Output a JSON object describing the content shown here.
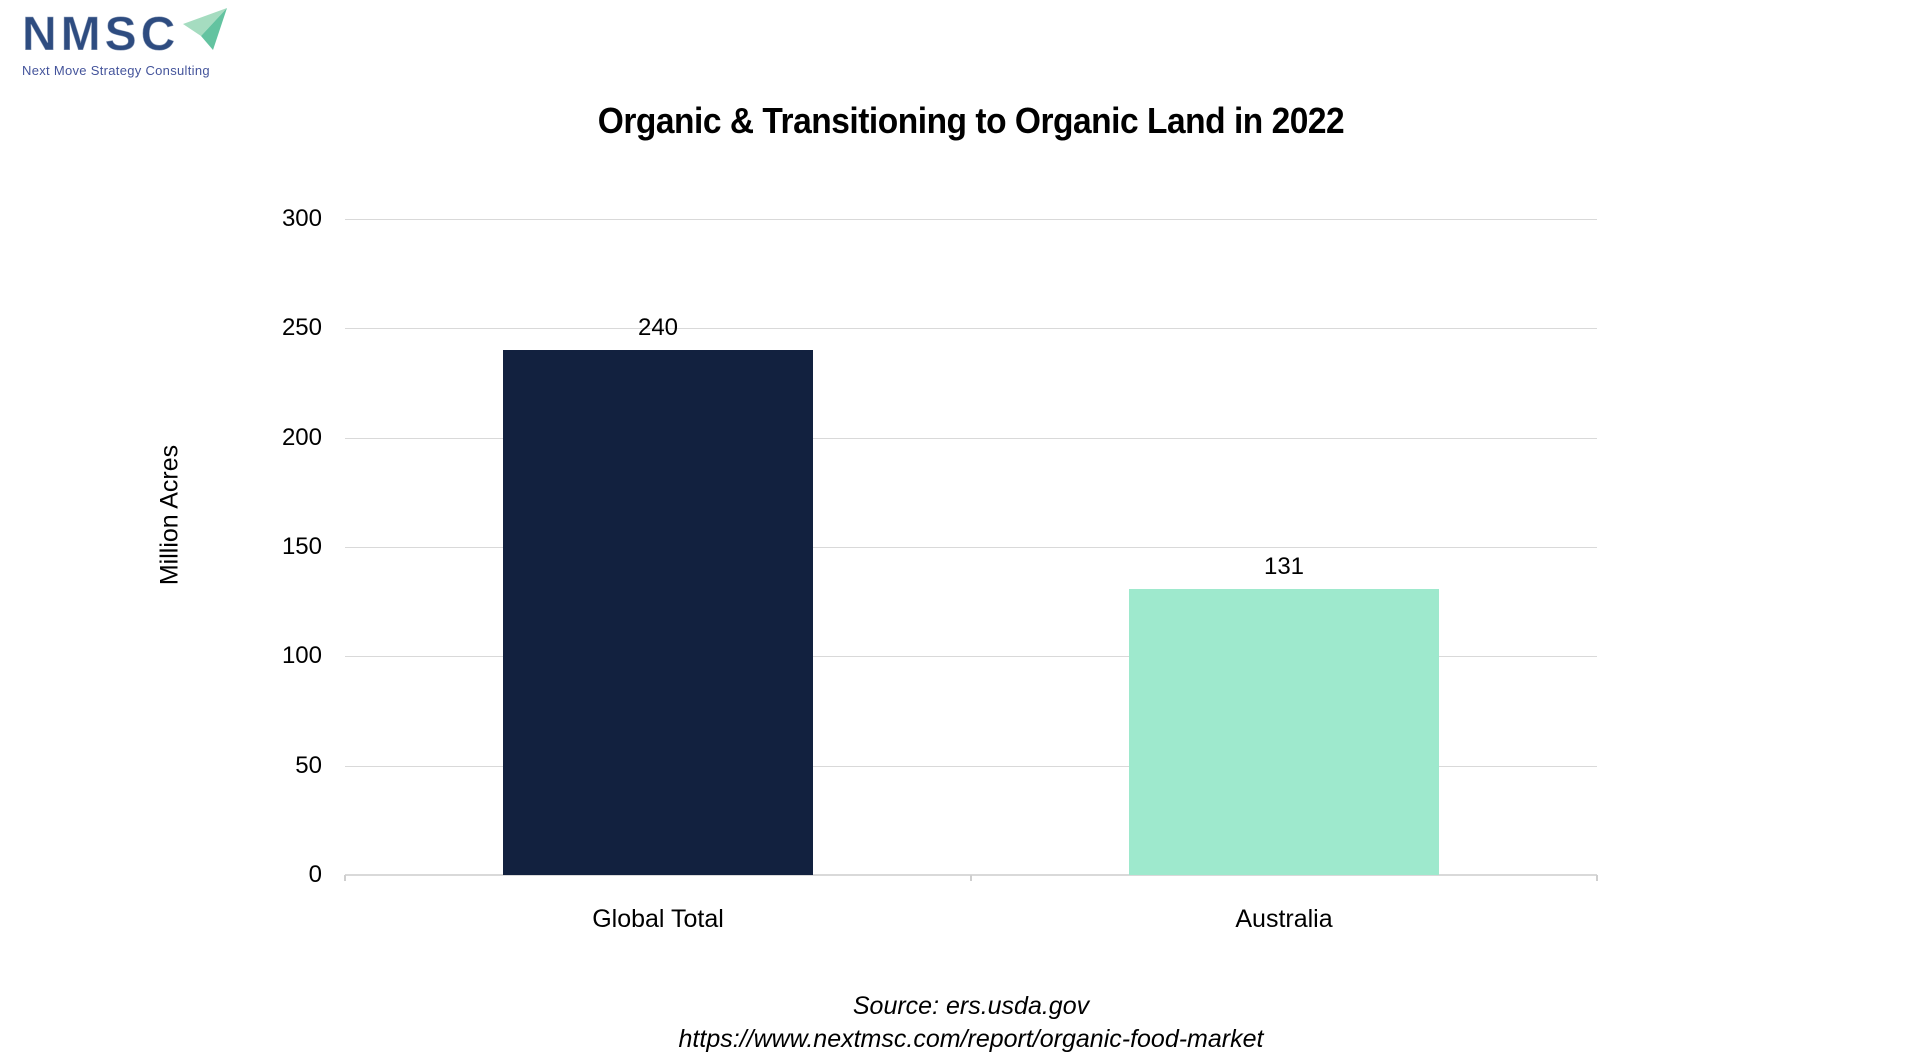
{
  "logo": {
    "acronym": "NMSC",
    "tagline": "Next Move Strategy Consulting"
  },
  "header": {
    "title": "Organic & Transitioning to Organic Land in 2022"
  },
  "chart_data": {
    "type": "bar",
    "title": "Organic & Transitioning to Organic Land in 2022",
    "categories": [
      "Global Total",
      "Australia"
    ],
    "values": [
      240,
      131
    ],
    "data_labels": [
      "240",
      "131"
    ],
    "bar_colors": [
      "#12213F",
      "#9EE9CD"
    ],
    "xlabel": "",
    "ylabel": "Million Acres",
    "ylim": [
      0,
      300
    ],
    "yticks": [
      0,
      50,
      100,
      150,
      200,
      250,
      300
    ],
    "grid": "horizontal",
    "gridline_color": "#D9D9D9",
    "legend": "none"
  },
  "footer": {
    "source_line1": "Source: ers.usda.gov",
    "source_line2": "https://www.nextmsc.com/report/organic-food-market"
  },
  "colors": {
    "bar_global_total": "#12213F",
    "bar_australia": "#9EE9CD",
    "gridline": "#D9D9D9",
    "axis_line": "#D9D9D9",
    "logo_text": "#2E4C80",
    "logo_tagline": "#44549B",
    "plane_light": "#A5DCC0",
    "plane_dark": "#63C3A0"
  }
}
